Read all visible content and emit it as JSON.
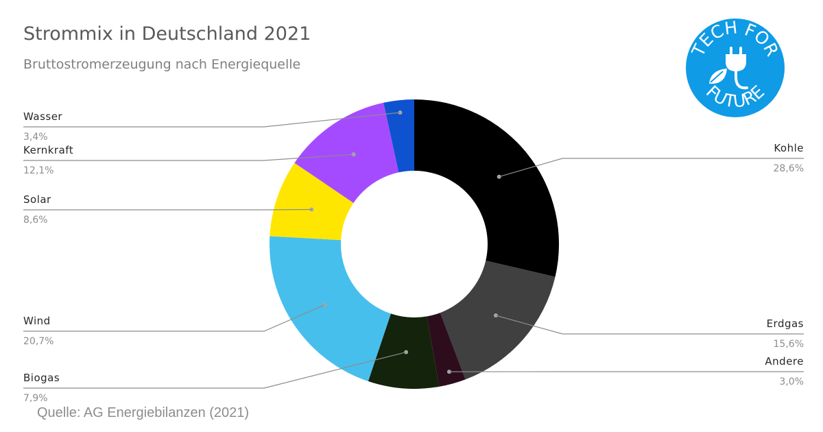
{
  "chart_data": {
    "type": "pie",
    "title": "Strommix in Deutschland 2021",
    "subtitle": "Bruttostromerzeugung nach Energiequelle",
    "source": "Quelle: AG Energiebilanzen (2021)",
    "unit": "%",
    "slices": [
      {
        "name": "Kohle",
        "value": 28.6,
        "label": "28,6%",
        "color": "#000000",
        "side": "right"
      },
      {
        "name": "Erdgas",
        "value": 15.6,
        "label": "15,6%",
        "color": "#404040",
        "side": "right"
      },
      {
        "name": "Andere",
        "value": 3.0,
        "label": "3,0%",
        "color": "#2d0d1c",
        "side": "right"
      },
      {
        "name": "Biogas",
        "value": 7.9,
        "label": "7,9%",
        "color": "#13230c",
        "side": "left"
      },
      {
        "name": "Wind",
        "value": 20.7,
        "label": "20,7%",
        "color": "#46bfec",
        "side": "left"
      },
      {
        "name": "Solar",
        "value": 8.6,
        "label": "8,6%",
        "color": "#ffe600",
        "side": "left"
      },
      {
        "name": "Kernkraft",
        "value": 12.1,
        "label": "12,1%",
        "color": "#a54bff",
        "side": "left"
      },
      {
        "name": "Wasser",
        "value": 3.4,
        "label": "3,4%",
        "color": "#0e52d0",
        "side": "left"
      }
    ]
  },
  "logo": {
    "top_text": "TECH FOR",
    "bottom_text": "FUTURE",
    "color": "#0f9be6"
  }
}
